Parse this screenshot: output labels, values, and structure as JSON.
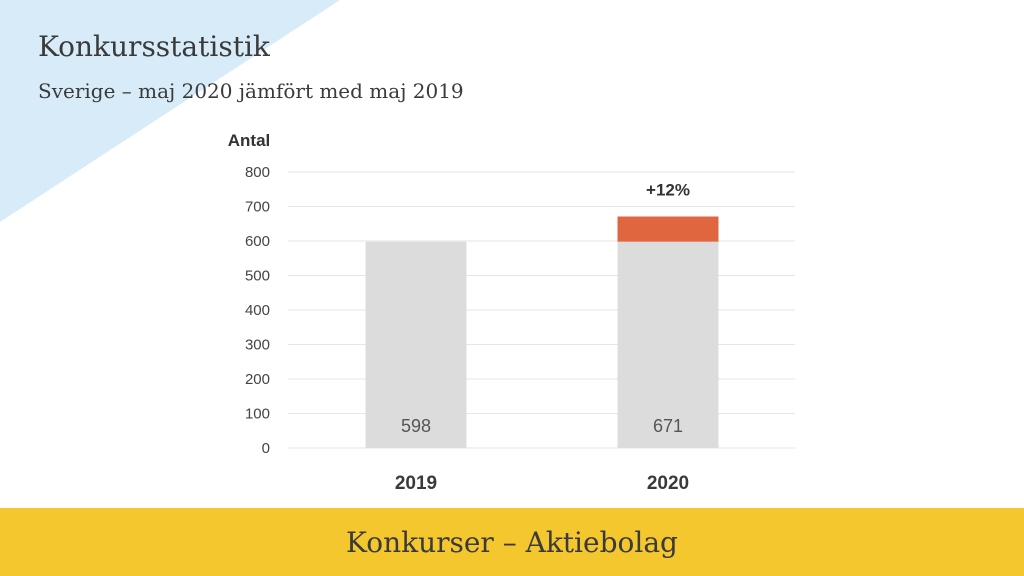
{
  "header": {
    "title": "Konkursstatistik",
    "subtitle": "Sverige – maj 2020 jämfört med maj 2019"
  },
  "footer": {
    "label": "Konkurser – Aktiebolag"
  },
  "chart_data": {
    "type": "bar",
    "ylabel": "Antal",
    "ylim": [
      0,
      800
    ],
    "yticks": [
      0,
      100,
      200,
      300,
      400,
      500,
      600,
      700,
      800
    ],
    "grid": true,
    "categories": [
      "2019",
      "2020"
    ],
    "values": [
      598,
      671
    ],
    "value_labels": [
      "598",
      "671"
    ],
    "baseline": 598,
    "increase_label": "+12%",
    "colors": {
      "bar": "#dcdcdc",
      "increase": "#e06640",
      "grid": "#e6e6e6"
    }
  }
}
